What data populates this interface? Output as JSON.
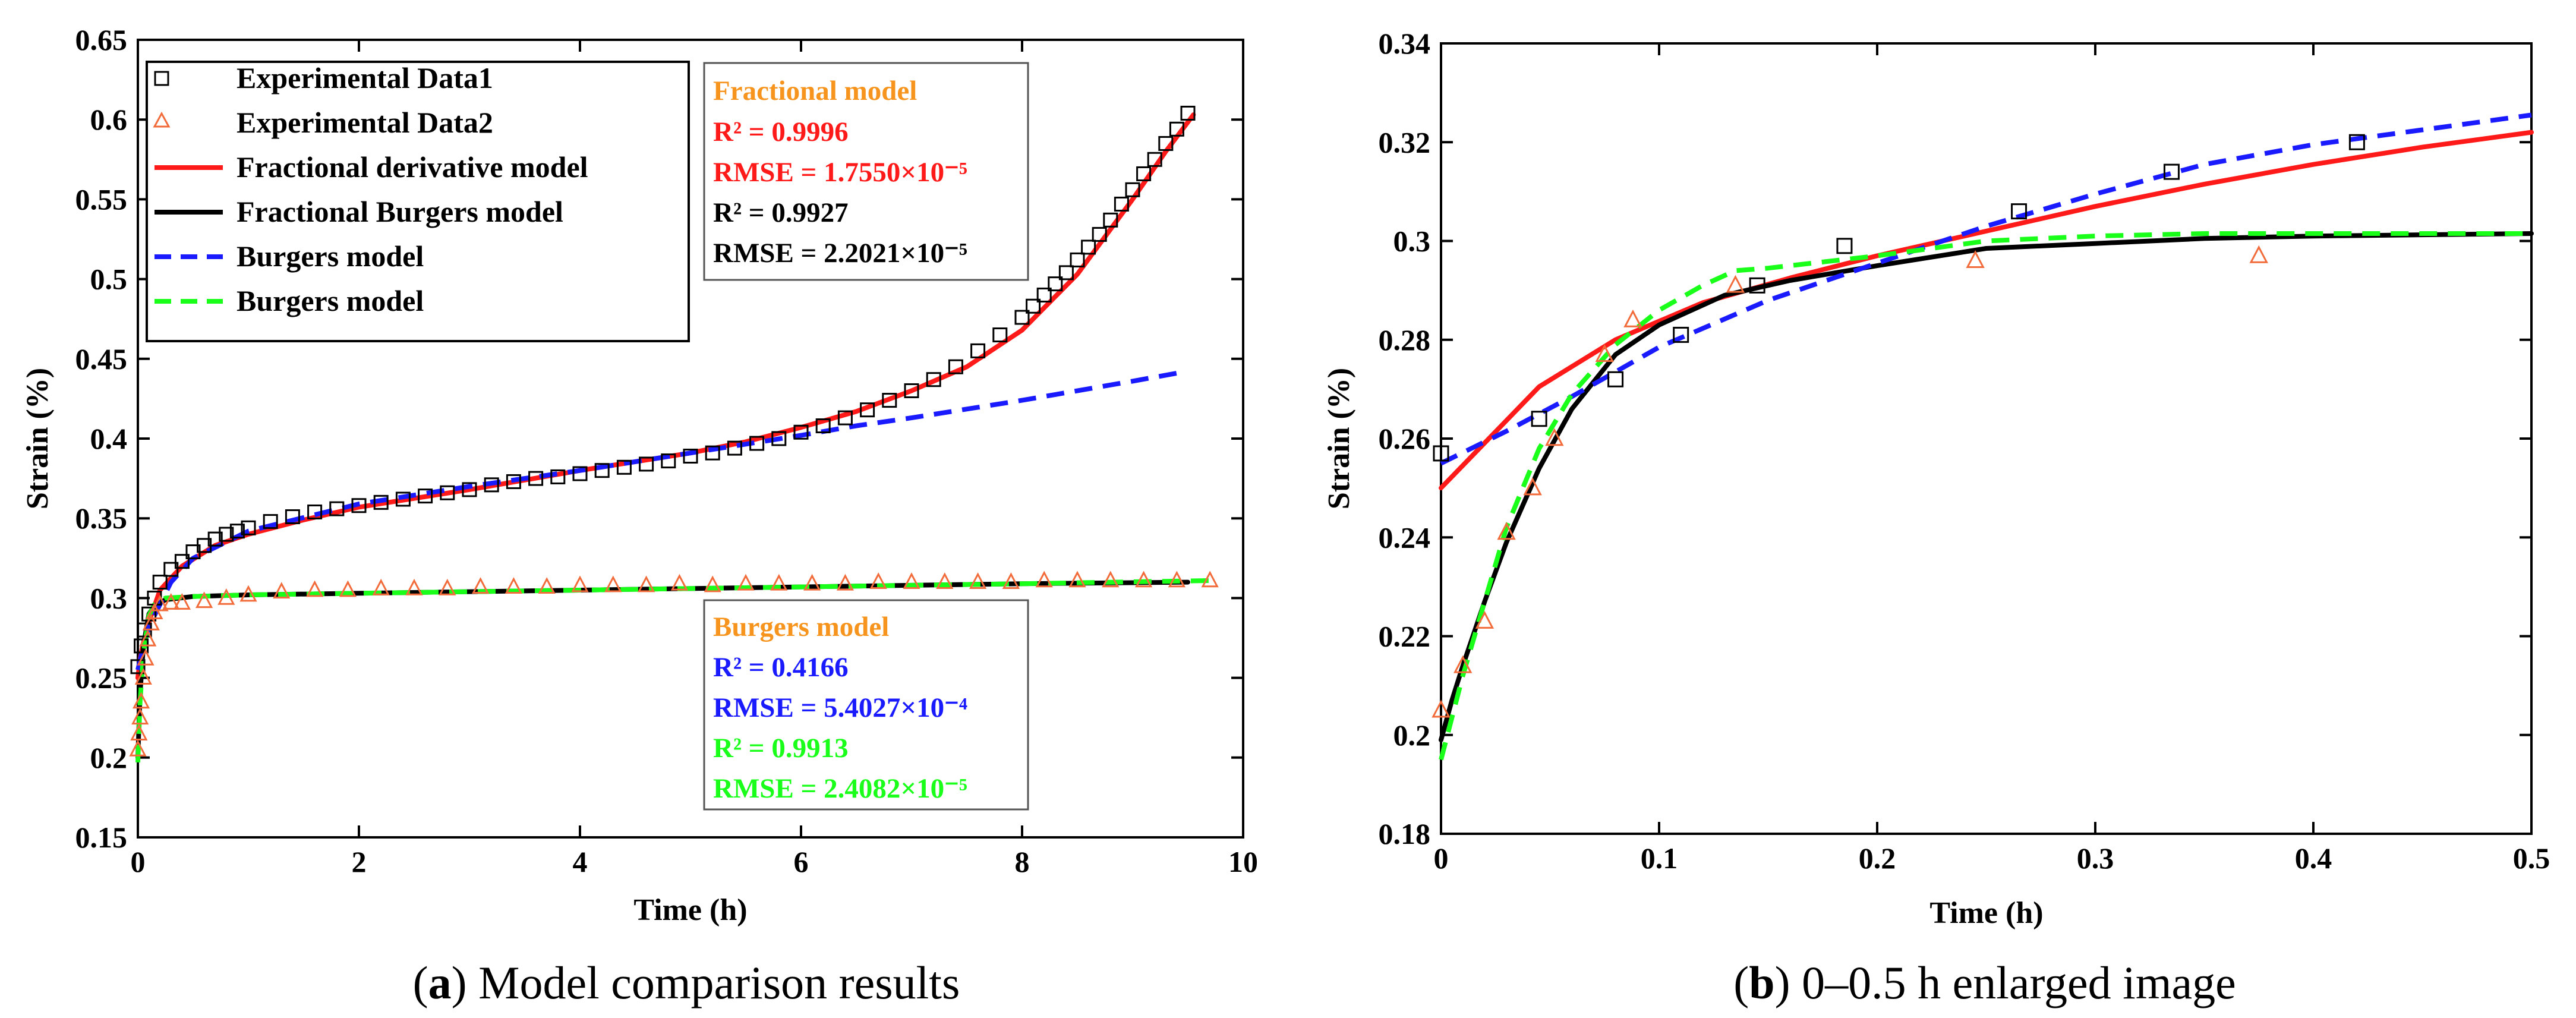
{
  "captions": {
    "a_letter": "a",
    "a_text": "Model comparison results",
    "b_letter": "b",
    "b_text": "0–0.5 h enlarged image"
  },
  "legend": [
    {
      "label": "Experimental Data1",
      "kind": "square",
      "color": "#000000"
    },
    {
      "label": "Experimental Data2",
      "kind": "triangle",
      "color": "#f26b3a"
    },
    {
      "label": "Fractional derivative model",
      "kind": "line",
      "color": "#ff1a1a"
    },
    {
      "label": "Fractional Burgers model",
      "kind": "line",
      "color": "#000000"
    },
    {
      "label": "Burgers model",
      "kind": "dash",
      "color": "#1a1aff"
    },
    {
      "label": "Burgers model",
      "kind": "dash",
      "color": "#1aff1a"
    }
  ],
  "fractional_box": {
    "title": "Fractional model",
    "r2_red": "R² = 0.9996",
    "rmse_red": "RMSE = 1.7550×10⁻⁵",
    "r2_black": "R² = 0.9927",
    "rmse_black": "RMSE = 2.2021×10⁻⁵"
  },
  "burgers_box": {
    "title": "Burgers model",
    "r2_blue": "R² = 0.4166",
    "rmse_blue": "RMSE = 5.4027×10⁻⁴",
    "r2_green": "R² = 0.9913",
    "rmse_green": "RMSE = 2.4082×10⁻⁵"
  },
  "colors": {
    "red": "#ff1a1a",
    "black": "#000000",
    "blue": "#1a1aff",
    "green": "#1aff1a",
    "orange_marker": "#f26b3a",
    "orange_title": "#f7941d"
  },
  "chart_data": [
    {
      "type": "line",
      "panel": "a",
      "xlabel": "Time (h)",
      "ylabel": "Strain (%)",
      "xlim": [
        0,
        10
      ],
      "ylim": [
        0.15,
        0.65
      ],
      "xticks": [
        0,
        2,
        4,
        6,
        8,
        10
      ],
      "xtick_labels": [
        "0",
        "2",
        "4",
        "6",
        "8",
        "10"
      ],
      "yticks": [
        0.15,
        0.2,
        0.25,
        0.3,
        0.35,
        0.4,
        0.45,
        0.5,
        0.55,
        0.6,
        0.65
      ],
      "ytick_labels": [
        "0.15",
        "0.2",
        "0.25",
        "0.3",
        "0.35",
        "0.4",
        "0.45",
        "0.5",
        "0.55",
        "0.6",
        "0.65"
      ],
      "series": [
        {
          "name": "Fractional derivative model",
          "style": "solid",
          "color": "#ff1a1a",
          "x": [
            0,
            0.02,
            0.05,
            0.1,
            0.2,
            0.4,
            0.7,
            1,
            1.5,
            2,
            3,
            4,
            5,
            5.5,
            6,
            6.5,
            7,
            7.5,
            8,
            8.5,
            9,
            9.3,
            9.55
          ],
          "y": [
            0.25,
            0.262,
            0.272,
            0.285,
            0.305,
            0.32,
            0.333,
            0.34,
            0.349,
            0.357,
            0.368,
            0.38,
            0.391,
            0.398,
            0.407,
            0.417,
            0.43,
            0.445,
            0.468,
            0.503,
            0.55,
            0.58,
            0.603
          ]
        },
        {
          "name": "Fractional Burgers model",
          "style": "solid",
          "color": "#000000",
          "x": [
            0,
            0.02,
            0.05,
            0.1,
            0.15,
            0.25,
            0.5,
            1,
            2,
            4,
            6,
            8,
            9.5
          ],
          "y": [
            0.2,
            0.24,
            0.27,
            0.29,
            0.295,
            0.299,
            0.301,
            0.302,
            0.303,
            0.305,
            0.307,
            0.309,
            0.31
          ]
        },
        {
          "name": "Burgers model",
          "style": "dash",
          "color": "#1a1aff",
          "x": [
            0,
            0.05,
            0.1,
            0.2,
            0.3,
            0.5,
            1,
            2,
            3,
            4,
            5,
            6,
            6.5,
            7,
            8,
            9,
            9.4
          ],
          "y": [
            0.255,
            0.27,
            0.282,
            0.296,
            0.31,
            0.325,
            0.342,
            0.359,
            0.37,
            0.38,
            0.391,
            0.402,
            0.408,
            0.413,
            0.424,
            0.436,
            0.441
          ]
        },
        {
          "name": "Burgers model",
          "style": "dash",
          "color": "#1aff1a",
          "x": [
            0,
            0.02,
            0.05,
            0.1,
            0.15,
            0.25,
            0.5,
            1,
            2,
            4,
            6,
            8,
            9.7
          ],
          "y": [
            0.197,
            0.235,
            0.265,
            0.289,
            0.296,
            0.3,
            0.301,
            0.302,
            0.303,
            0.305,
            0.307,
            0.309,
            0.311
          ]
        },
        {
          "name": "Experimental Data1",
          "style": "square",
          "color": "#000000",
          "x": [
            0,
            0.03,
            0.06,
            0.1,
            0.15,
            0.2,
            0.3,
            0.4,
            0.5,
            0.6,
            0.7,
            0.8,
            0.9,
            1.0,
            1.2,
            1.4,
            1.6,
            1.8,
            2.0,
            2.2,
            2.4,
            2.6,
            2.8,
            3.0,
            3.2,
            3.4,
            3.6,
            3.8,
            4.0,
            4.2,
            4.4,
            4.6,
            4.8,
            5.0,
            5.2,
            5.4,
            5.6,
            5.8,
            6.0,
            6.2,
            6.4,
            6.6,
            6.8,
            7.0,
            7.2,
            7.4,
            7.6,
            7.8,
            8.0,
            8.1,
            8.2,
            8.3,
            8.4,
            8.5,
            8.6,
            8.7,
            8.8,
            8.9,
            9.0,
            9.1,
            9.2,
            9.3,
            9.4,
            9.5
          ],
          "y": [
            0.257,
            0.27,
            0.28,
            0.29,
            0.3,
            0.31,
            0.318,
            0.323,
            0.329,
            0.333,
            0.337,
            0.34,
            0.342,
            0.344,
            0.348,
            0.351,
            0.354,
            0.356,
            0.358,
            0.36,
            0.362,
            0.364,
            0.366,
            0.368,
            0.371,
            0.373,
            0.375,
            0.376,
            0.378,
            0.38,
            0.382,
            0.384,
            0.386,
            0.389,
            0.391,
            0.394,
            0.397,
            0.4,
            0.404,
            0.408,
            0.413,
            0.418,
            0.424,
            0.43,
            0.437,
            0.445,
            0.455,
            0.465,
            0.476,
            0.483,
            0.49,
            0.497,
            0.504,
            0.512,
            0.52,
            0.528,
            0.537,
            0.547,
            0.556,
            0.566,
            0.575,
            0.585,
            0.594,
            0.604
          ]
        },
        {
          "name": "Experimental Data2",
          "style": "triangle",
          "color": "#f26b3a",
          "x": [
            0,
            0.01,
            0.02,
            0.03,
            0.05,
            0.07,
            0.09,
            0.12,
            0.15,
            0.2,
            0.3,
            0.4,
            0.6,
            0.8,
            1.0,
            1.3,
            1.6,
            1.9,
            2.2,
            2.5,
            2.8,
            3.1,
            3.4,
            3.7,
            4.0,
            4.3,
            4.6,
            4.9,
            5.2,
            5.5,
            5.8,
            6.1,
            6.4,
            6.7,
            7.0,
            7.3,
            7.6,
            7.9,
            8.2,
            8.5,
            8.8,
            9.1,
            9.4,
            9.7
          ],
          "y": [
            0.205,
            0.215,
            0.225,
            0.235,
            0.25,
            0.262,
            0.274,
            0.284,
            0.291,
            0.296,
            0.297,
            0.297,
            0.298,
            0.3,
            0.302,
            0.304,
            0.305,
            0.305,
            0.306,
            0.306,
            0.306,
            0.307,
            0.307,
            0.307,
            0.308,
            0.308,
            0.308,
            0.309,
            0.308,
            0.309,
            0.309,
            0.309,
            0.309,
            0.31,
            0.31,
            0.31,
            0.31,
            0.31,
            0.311,
            0.311,
            0.311,
            0.311,
            0.311,
            0.311
          ]
        }
      ]
    },
    {
      "type": "line",
      "panel": "b",
      "xlabel": "Time (h)",
      "ylabel": "Strain (%)",
      "xlim": [
        0,
        0.5
      ],
      "ylim": [
        0.18,
        0.34
      ],
      "xticks": [
        0,
        0.1,
        0.2,
        0.3,
        0.4,
        0.5
      ],
      "xtick_labels": [
        "0",
        "0.1",
        "0.2",
        "0.3",
        "0.4",
        "0.5"
      ],
      "yticks": [
        0.18,
        0.2,
        0.22,
        0.24,
        0.26,
        0.28,
        0.3,
        0.32,
        0.34
      ],
      "ytick_labels": [
        "0.18",
        "0.2",
        "0.22",
        "0.24",
        "0.26",
        "0.28",
        "0.3",
        "0.32",
        "0.34"
      ],
      "series": [
        {
          "name": "Fractional derivative model",
          "style": "solid",
          "color": "#ff1a1a",
          "x": [
            0,
            0.045,
            0.08,
            0.12,
            0.16,
            0.2,
            0.25,
            0.3,
            0.35,
            0.4,
            0.45,
            0.5
          ],
          "y": [
            0.25,
            0.2705,
            0.28,
            0.2875,
            0.2925,
            0.297,
            0.302,
            0.307,
            0.3115,
            0.3155,
            0.319,
            0.322
          ]
        },
        {
          "name": "Fractional Burgers model",
          "style": "solid",
          "color": "#000000",
          "x": [
            0,
            0.005,
            0.01,
            0.02,
            0.03,
            0.045,
            0.06,
            0.08,
            0.1,
            0.13,
            0.16,
            0.2,
            0.25,
            0.3,
            0.35,
            0.4,
            0.5
          ],
          "y": [
            0.199,
            0.207,
            0.214,
            0.227,
            0.239,
            0.254,
            0.266,
            0.277,
            0.283,
            0.289,
            0.292,
            0.295,
            0.2985,
            0.2995,
            0.3005,
            0.301,
            0.3015
          ]
        },
        {
          "name": "Burgers model",
          "style": "dash",
          "color": "#1a1aff",
          "x": [
            0,
            0.03,
            0.06,
            0.1,
            0.15,
            0.2,
            0.25,
            0.3,
            0.35,
            0.4,
            0.45,
            0.5
          ],
          "y": [
            0.255,
            0.2615,
            0.2685,
            0.2785,
            0.288,
            0.2955,
            0.303,
            0.3095,
            0.3155,
            0.3195,
            0.3225,
            0.3255
          ]
        },
        {
          "name": "Burgers model",
          "style": "dash",
          "color": "#1aff1a",
          "x": [
            0,
            0.01,
            0.02,
            0.03,
            0.045,
            0.06,
            0.08,
            0.1,
            0.12,
            0.135,
            0.15,
            0.2,
            0.25,
            0.3,
            0.35,
            0.4,
            0.5
          ],
          "y": [
            0.195,
            0.212,
            0.227,
            0.242,
            0.258,
            0.269,
            0.279,
            0.286,
            0.291,
            0.294,
            0.2945,
            0.297,
            0.3,
            0.301,
            0.3015,
            0.3015,
            0.3015
          ]
        },
        {
          "name": "Experimental Data1",
          "style": "square",
          "color": "#000000",
          "x": [
            0,
            0.045,
            0.08,
            0.11,
            0.145,
            0.185,
            0.265,
            0.335,
            0.42
          ],
          "y": [
            0.257,
            0.264,
            0.272,
            0.281,
            0.291,
            0.299,
            0.306,
            0.314,
            0.32
          ]
        },
        {
          "name": "Experimental Data2",
          "style": "triangle",
          "color": "#f26b3a",
          "x": [
            0,
            0.01,
            0.02,
            0.03,
            0.042,
            0.052,
            0.075,
            0.088,
            0.135,
            0.245,
            0.375
          ],
          "y": [
            0.205,
            0.214,
            0.223,
            0.241,
            0.25,
            0.26,
            0.277,
            0.284,
            0.291,
            0.296,
            0.297
          ]
        }
      ]
    }
  ]
}
